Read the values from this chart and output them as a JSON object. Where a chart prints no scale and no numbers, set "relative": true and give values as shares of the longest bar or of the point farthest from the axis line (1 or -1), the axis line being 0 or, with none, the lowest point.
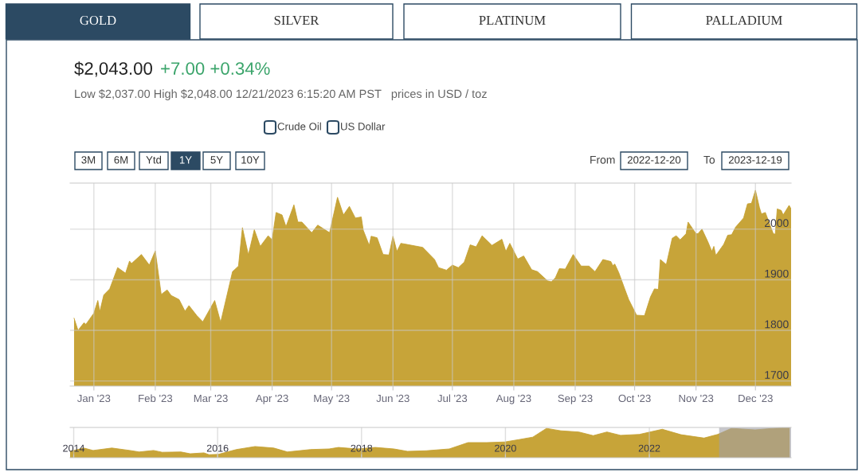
{
  "chart_data": [
    {
      "type": "area",
      "title": "$2,043.00",
      "subtitle": "+7.00 +0.34%",
      "annotations": [
        "GOLD",
        "SILVER",
        "PLATINUM",
        "PALLADIUM",
        "Low $2,037.00 High $2,048.00 12/21/2023 6:15:20 AM PST   prices in USD / toz",
        "Crude Oil",
        "US Dollar",
        "3M",
        "6M",
        "Ytd",
        "1Y",
        "5Y",
        "10Y",
        "From",
        "2022-12-20",
        "To",
        "2023-12-19"
      ],
      "x": [
        "2022-12-22",
        "2022-12-24",
        "2022-12-27",
        "2022-12-28",
        "2023-01-01",
        "2023-01-03",
        "2023-01-04",
        "2023-01-06",
        "2023-01-09",
        "2023-01-13",
        "2023-01-17",
        "2023-01-19",
        "2023-01-20",
        "2023-01-25",
        "2023-01-29",
        "2023-02-01",
        "2023-02-04",
        "2023-02-07",
        "2023-02-09",
        "2023-02-13",
        "2023-02-16",
        "2023-02-18",
        "2023-02-22",
        "2023-02-25",
        "2023-03-01",
        "2023-03-03",
        "2023-03-06",
        "2023-03-12",
        "2023-03-15",
        "2023-03-17",
        "2023-03-20",
        "2023-03-23",
        "2023-03-26",
        "2023-03-30",
        "2023-04-01",
        "2023-04-03",
        "2023-04-06",
        "2023-04-08",
        "2023-04-12",
        "2023-04-14",
        "2023-04-16",
        "2023-04-21",
        "2023-04-24",
        "2023-04-30",
        "2023-05-04",
        "2023-05-07",
        "2023-05-10",
        "2023-05-13",
        "2023-05-16",
        "2023-05-17",
        "2023-05-20",
        "2023-05-21",
        "2023-05-24",
        "2023-05-27",
        "2023-05-30",
        "2023-06-01",
        "2023-06-03",
        "2023-06-05",
        "2023-06-16",
        "2023-06-22",
        "2023-06-24",
        "2023-06-28",
        "2023-07-01",
        "2023-07-04",
        "2023-07-07",
        "2023-07-10",
        "2023-07-13",
        "2023-07-16",
        "2023-07-21",
        "2023-07-26",
        "2023-07-28",
        "2023-07-30",
        "2023-08-03",
        "2023-08-06",
        "2023-08-10",
        "2023-08-13",
        "2023-08-18",
        "2023-08-20",
        "2023-08-22",
        "2023-08-24",
        "2023-08-27",
        "2023-08-31",
        "2023-09-01",
        "2023-09-04",
        "2023-09-08",
        "2023-09-11",
        "2023-09-15",
        "2023-09-19",
        "2023-09-20",
        "2023-09-21",
        "2023-09-23",
        "2023-09-26",
        "2023-09-28",
        "2023-10-02",
        "2023-10-06",
        "2023-10-09",
        "2023-10-11",
        "2023-10-13",
        "2023-10-14",
        "2023-10-17",
        "2023-10-20",
        "2023-10-22",
        "2023-10-24",
        "2023-10-27",
        "2023-10-28",
        "2023-11-01",
        "2023-11-02",
        "2023-11-04",
        "2023-11-07",
        "2023-11-09",
        "2023-11-10",
        "2023-11-11",
        "2023-11-15",
        "2023-11-17",
        "2023-11-19",
        "2023-11-21",
        "2023-11-25",
        "2023-11-27",
        "2023-11-29",
        "2023-12-01",
        "2023-12-03",
        "2023-12-04",
        "2023-12-06",
        "2023-12-10",
        "2023-12-11",
        "2023-12-12",
        "2023-12-14",
        "2023-12-15",
        "2023-12-18",
        "2023-12-19"
      ],
      "values": [
        1824,
        1800,
        1815,
        1812,
        1834,
        1859,
        1837,
        1870,
        1882,
        1924,
        1913,
        1937,
        1932,
        1950,
        1929,
        1957,
        1871,
        1880,
        1869,
        1861,
        1838,
        1849,
        1829,
        1817,
        1845,
        1859,
        1816,
        1916,
        1927,
        2003,
        1949,
        1999,
        1966,
        1987,
        1979,
        2033,
        2028,
        2005,
        2048,
        2014,
        2014,
        1993,
        2008,
        1993,
        2063,
        2028,
        2045,
        2022,
        2024,
        1998,
        1968,
        1986,
        1983,
        1950,
        1949,
        1986,
        1956,
        1972,
        1964,
        1940,
        1924,
        1919,
        1929,
        1924,
        1935,
        1969,
        1965,
        1987,
        1968,
        1980,
        1956,
        1972,
        1941,
        1947,
        1920,
        1916,
        1898,
        1896,
        1904,
        1922,
        1921,
        1950,
        1944,
        1927,
        1927,
        1916,
        1940,
        1936,
        1928,
        1931,
        1914,
        1882,
        1861,
        1830,
        1829,
        1866,
        1882,
        1881,
        1940,
        1930,
        1982,
        1987,
        1979,
        1991,
        2014,
        1991,
        1991,
        2000,
        1975,
        1956,
        1966,
        1948,
        1970,
        1988,
        1989,
        2004,
        2022,
        2050,
        2051,
        2077,
        2043,
        2030,
        2033,
        1991,
        1990,
        2040,
        2037,
        2028,
        2047,
        2040
      ],
      "color": "#c49f2e",
      "xlim": [
        "2022-12-20",
        "2023-12-19"
      ],
      "ylim": [
        1690,
        2091
      ],
      "yticks": [
        1700,
        1800,
        1900,
        2000
      ],
      "xticks": [
        {
          "value": "2023-01-01",
          "label": "Jan '23"
        },
        {
          "value": "2023-02-01",
          "label": "Feb '23"
        },
        {
          "value": "2023-03-01",
          "label": "Mar '23"
        },
        {
          "value": "2023-04-01",
          "label": "Apr '23"
        },
        {
          "value": "2023-05-01",
          "label": "May '23"
        },
        {
          "value": "2023-06-01",
          "label": "Jun '23"
        },
        {
          "value": "2023-07-01",
          "label": "Jul '23"
        },
        {
          "value": "2023-08-01",
          "label": "Aug '23"
        },
        {
          "value": "2023-09-01",
          "label": "Sep '23"
        },
        {
          "value": "2023-10-01",
          "label": "Oct '23"
        },
        {
          "value": "2023-11-01",
          "label": "Nov '23"
        },
        {
          "value": "2023-12-01",
          "label": "Dec '23"
        }
      ],
      "grid": true
    },
    {
      "type": "area",
      "relative": true,
      "x": [
        2013.95,
        2014.14,
        2014.27,
        2014.53,
        2014.78,
        2014.91,
        2015.11,
        2015.23,
        2015.49,
        2015.62,
        2015.81,
        2015.88,
        2016.01,
        2016.26,
        2016.52,
        2016.78,
        2016.97,
        2017.29,
        2017.55,
        2017.68,
        2017.94,
        2018.19,
        2018.45,
        2018.64,
        2018.9,
        2019.22,
        2019.48,
        2019.74,
        2019.99,
        2020.19,
        2020.38,
        2020.57,
        2020.77,
        2021.02,
        2021.22,
        2021.41,
        2021.6,
        2021.86,
        2022.18,
        2022.44,
        2022.76,
        2022.95,
        2023.14,
        2023.47,
        2023.72,
        2023.95
      ],
      "values": [
        0.21,
        0.32,
        0.24,
        0.32,
        0.24,
        0.19,
        0.24,
        0.18,
        0.19,
        0.13,
        0.16,
        0.1,
        0.11,
        0.27,
        0.37,
        0.32,
        0.19,
        0.27,
        0.29,
        0.34,
        0.29,
        0.34,
        0.29,
        0.21,
        0.23,
        0.29,
        0.5,
        0.5,
        0.52,
        0.6,
        0.68,
        0.97,
        0.89,
        0.85,
        0.73,
        0.85,
        0.74,
        0.77,
        0.94,
        0.76,
        0.65,
        0.77,
        0.97,
        0.92,
        0.97,
        1
      ],
      "color": "#c49f2e",
      "xlim": [
        2013.95,
        2023.97
      ],
      "xticks": [
        2014,
        2016,
        2018,
        2020,
        2022
      ],
      "bands": [
        {
          "axis": "x",
          "from": 2022.97,
          "to": 2023.97,
          "color": "#a0a0a8"
        }
      ],
      "grid": "x"
    }
  ]
}
